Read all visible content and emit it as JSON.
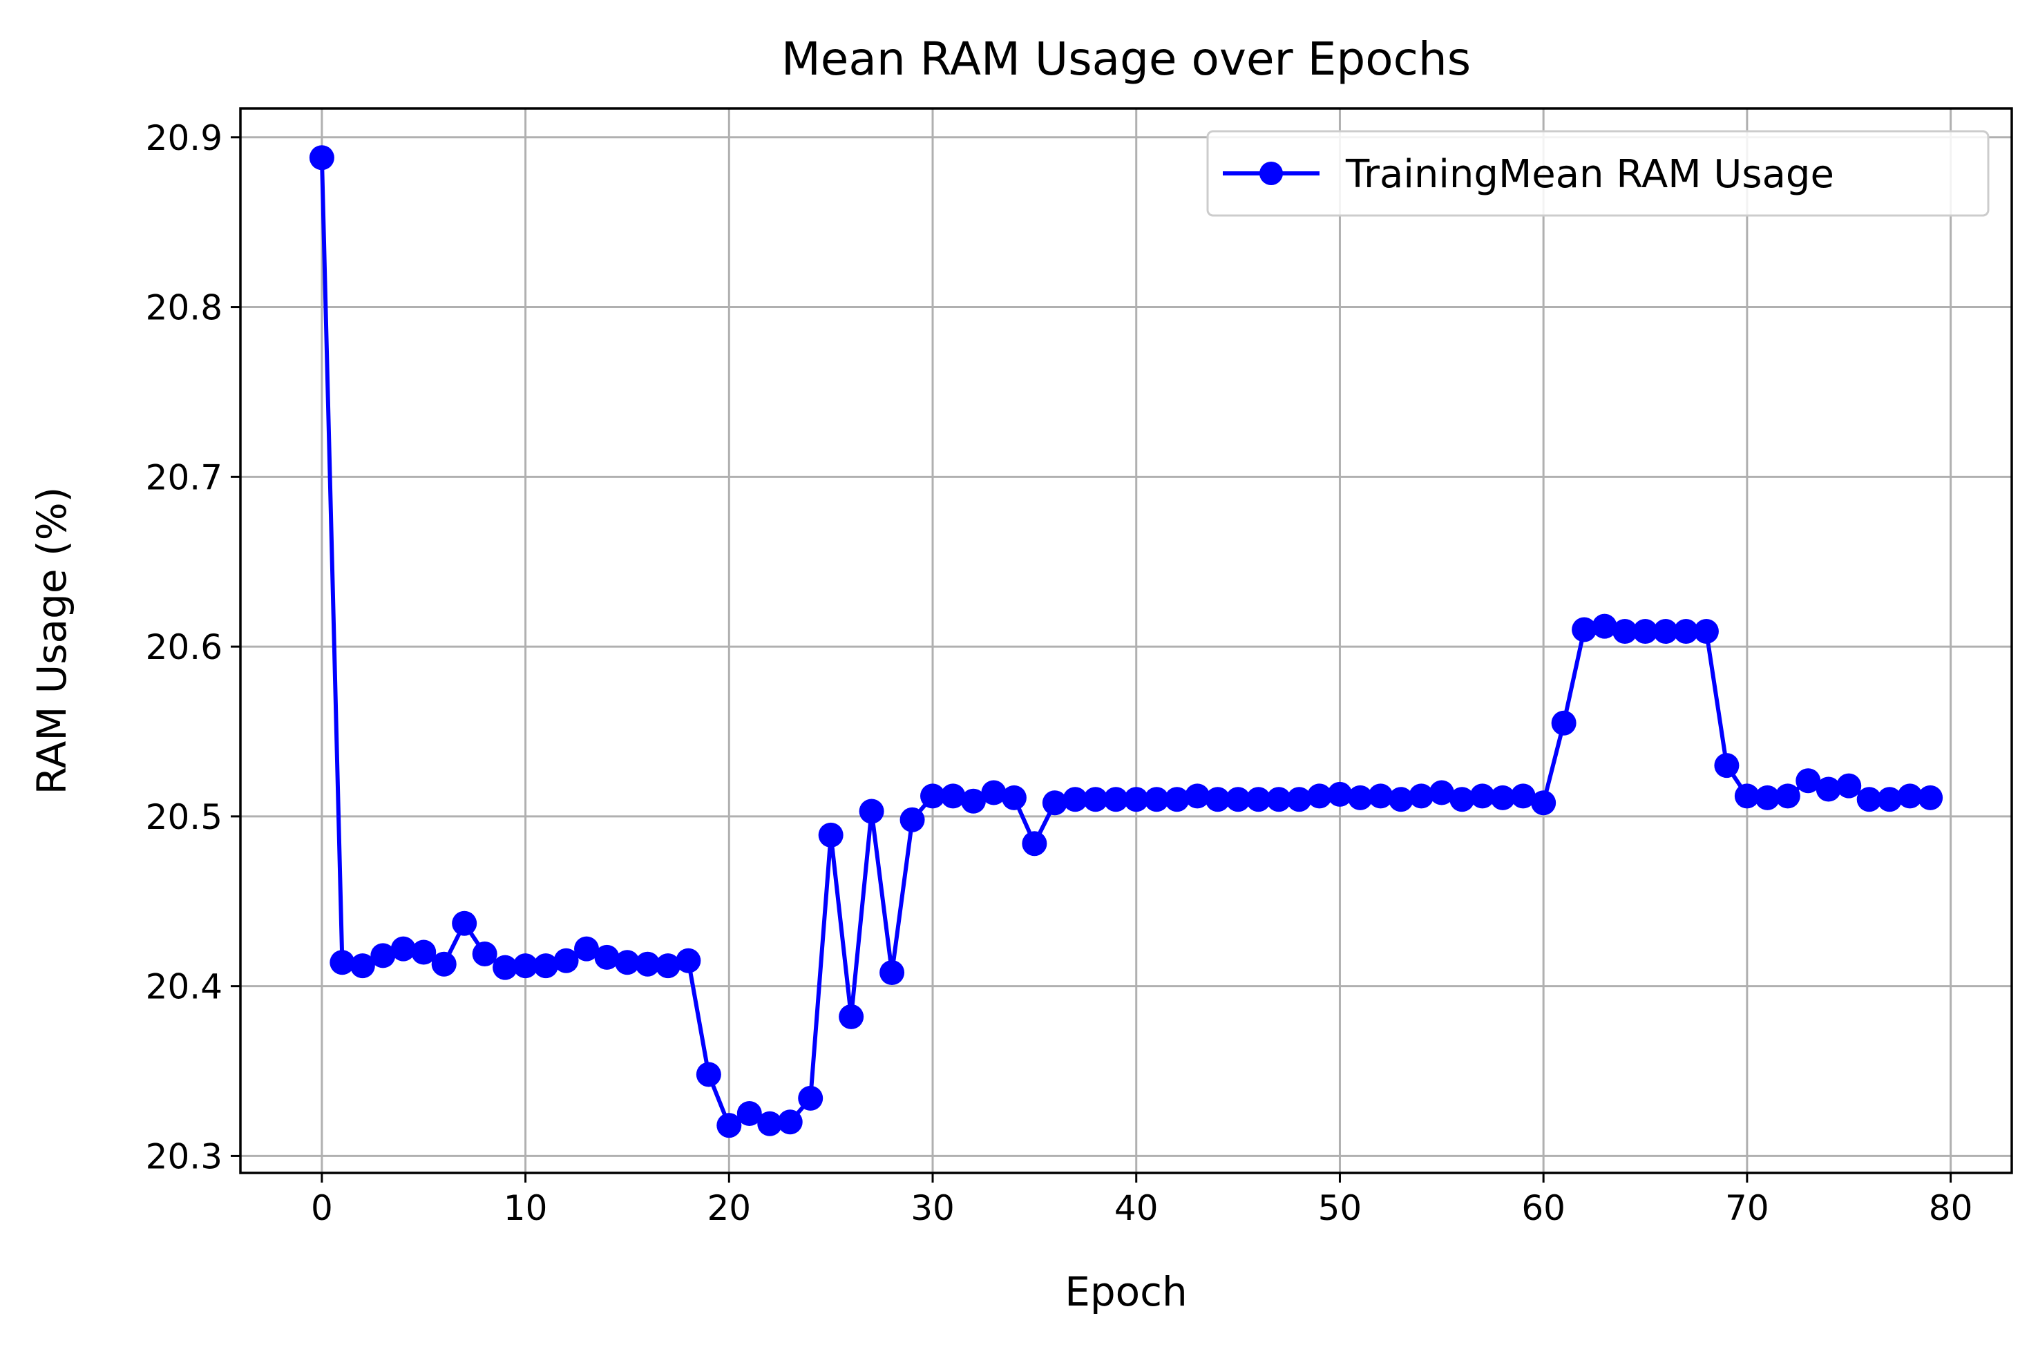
{
  "chart_data": {
    "type": "line",
    "title": "Mean RAM Usage over Epochs",
    "xlabel": "Epoch",
    "ylabel": "RAM Usage (%)",
    "xlim": [
      -4,
      83
    ],
    "ylim": [
      20.29,
      20.917
    ],
    "xticks": [
      0,
      10,
      20,
      30,
      40,
      50,
      60,
      70,
      80
    ],
    "yticks": [
      20.3,
      20.4,
      20.5,
      20.6,
      20.7,
      20.8,
      20.9
    ],
    "xtick_labels": [
      "0",
      "10",
      "20",
      "30",
      "40",
      "50",
      "60",
      "70",
      "80"
    ],
    "ytick_labels": [
      "20.3",
      "20.4",
      "20.5",
      "20.6",
      "20.7",
      "20.8",
      "20.9"
    ],
    "grid": true,
    "legend_position": "top-right",
    "color": "#0000ff",
    "series": [
      {
        "name": "TrainingMean RAM Usage",
        "x": [
          0,
          1,
          2,
          3,
          4,
          5,
          6,
          7,
          8,
          9,
          10,
          11,
          12,
          13,
          14,
          15,
          16,
          17,
          18,
          19,
          20,
          21,
          22,
          23,
          24,
          25,
          26,
          27,
          28,
          29,
          30,
          31,
          32,
          33,
          34,
          35,
          36,
          37,
          38,
          39,
          40,
          41,
          42,
          43,
          44,
          45,
          46,
          47,
          48,
          49,
          50,
          51,
          52,
          53,
          54,
          55,
          56,
          57,
          58,
          59,
          60,
          61,
          62,
          63,
          64,
          65,
          66,
          67,
          68,
          69,
          70,
          71,
          72,
          73,
          74,
          75,
          76,
          77,
          78,
          79
        ],
        "values": [
          20.888,
          20.414,
          20.412,
          20.418,
          20.422,
          20.42,
          20.413,
          20.437,
          20.419,
          20.411,
          20.412,
          20.412,
          20.415,
          20.422,
          20.417,
          20.414,
          20.413,
          20.412,
          20.415,
          20.348,
          20.318,
          20.325,
          20.319,
          20.32,
          20.334,
          20.489,
          20.382,
          20.503,
          20.408,
          20.498,
          20.512,
          20.512,
          20.509,
          20.514,
          20.511,
          20.484,
          20.508,
          20.51,
          20.51,
          20.51,
          20.51,
          20.51,
          20.51,
          20.512,
          20.51,
          20.51,
          20.51,
          20.51,
          20.51,
          20.512,
          20.513,
          20.511,
          20.512,
          20.51,
          20.512,
          20.514,
          20.51,
          20.512,
          20.511,
          20.512,
          20.508,
          20.555,
          20.61,
          20.612,
          20.609,
          20.609,
          20.609,
          20.609,
          20.609,
          20.53,
          20.512,
          20.511,
          20.512,
          20.521,
          20.516,
          20.518,
          20.51,
          20.51,
          20.512,
          20.511
        ]
      }
    ]
  }
}
